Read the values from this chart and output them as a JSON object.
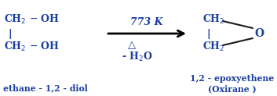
{
  "bg_color": "#ffffff",
  "text_color": "#1a3fa0",
  "arrow_color": "#000000",
  "figsize": [
    3.53,
    1.23
  ],
  "dpi": 100,
  "reactant_label": "ethane - 1,2 - diol",
  "condition_top": "773 K",
  "condition_bot": "- H₂O",
  "product_o": "O",
  "product_label1": "1,2 - epoxyethene",
  "product_label2": "(Oxirane )"
}
